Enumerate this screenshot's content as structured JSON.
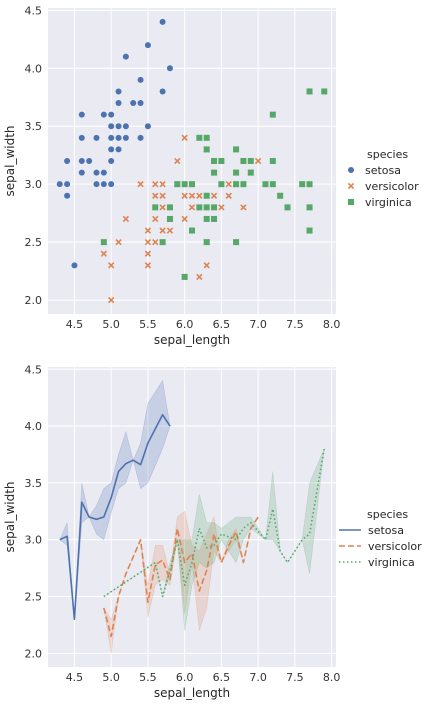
{
  "figure": {
    "panels": [
      {
        "id": "scatter",
        "xlabel": "sepal_length",
        "ylabel": "sepal_width",
        "xticks": [
          "4.5",
          "5.0",
          "5.5",
          "6.0",
          "6.5",
          "7.0",
          "7.5",
          "8.0"
        ],
        "yticks": [
          "2.0",
          "2.5",
          "3.0",
          "3.5",
          "4.0",
          "4.5"
        ],
        "legend": {
          "title": "species",
          "items": [
            "setosa",
            "versicolor",
            "virginica"
          ]
        }
      },
      {
        "id": "line",
        "xlabel": "sepal_length",
        "ylabel": "sepal_width",
        "xticks": [
          "4.5",
          "5.0",
          "5.5",
          "6.0",
          "6.5",
          "7.0",
          "7.5",
          "8.0"
        ],
        "yticks": [
          "2.0",
          "2.5",
          "3.0",
          "3.5",
          "4.0",
          "4.5"
        ],
        "legend": {
          "title": "species",
          "items": [
            "setosa",
            "versicolor",
            "virginica"
          ]
        }
      }
    ]
  },
  "chart_data": [
    {
      "type": "scatter",
      "xlabel": "sepal_length",
      "ylabel": "sepal_width",
      "xlim": [
        4.14,
        8.06
      ],
      "ylim": [
        1.88,
        4.52
      ],
      "grid": true,
      "legend_position": "right",
      "series": [
        {
          "name": "setosa",
          "marker": "circle",
          "color": "#4c72b0",
          "points": [
            [
              4.3,
              3.0
            ],
            [
              4.4,
              2.9
            ],
            [
              4.4,
              3.0
            ],
            [
              4.4,
              3.2
            ],
            [
              4.5,
              2.3
            ],
            [
              4.6,
              3.1
            ],
            [
              4.6,
              3.2
            ],
            [
              4.6,
              3.4
            ],
            [
              4.6,
              3.6
            ],
            [
              4.7,
              3.2
            ],
            [
              4.8,
              3.0
            ],
            [
              4.8,
              3.1
            ],
            [
              4.8,
              3.4
            ],
            [
              4.9,
              3.0
            ],
            [
              4.9,
              3.1
            ],
            [
              4.9,
              3.6
            ],
            [
              5.0,
              3.0
            ],
            [
              5.0,
              3.2
            ],
            [
              5.0,
              3.3
            ],
            [
              5.0,
              3.4
            ],
            [
              5.0,
              3.5
            ],
            [
              5.0,
              3.6
            ],
            [
              5.1,
              3.3
            ],
            [
              5.1,
              3.4
            ],
            [
              5.1,
              3.5
            ],
            [
              5.1,
              3.7
            ],
            [
              5.1,
              3.8
            ],
            [
              5.2,
              3.4
            ],
            [
              5.2,
              3.5
            ],
            [
              5.2,
              4.1
            ],
            [
              5.3,
              3.7
            ],
            [
              5.4,
              3.4
            ],
            [
              5.4,
              3.7
            ],
            [
              5.4,
              3.9
            ],
            [
              5.5,
              3.5
            ],
            [
              5.5,
              4.2
            ],
            [
              5.7,
              3.8
            ],
            [
              5.7,
              4.4
            ],
            [
              5.8,
              4.0
            ]
          ]
        },
        {
          "name": "versicolor",
          "marker": "x",
          "color": "#dd8452",
          "points": [
            [
              4.9,
              2.4
            ],
            [
              5.0,
              2.0
            ],
            [
              5.0,
              2.3
            ],
            [
              5.1,
              2.5
            ],
            [
              5.2,
              2.7
            ],
            [
              5.4,
              3.0
            ],
            [
              5.5,
              2.3
            ],
            [
              5.5,
              2.4
            ],
            [
              5.5,
              2.5
            ],
            [
              5.5,
              2.6
            ],
            [
              5.6,
              2.5
            ],
            [
              5.6,
              2.7
            ],
            [
              5.6,
              2.9
            ],
            [
              5.6,
              3.0
            ],
            [
              5.7,
              2.6
            ],
            [
              5.7,
              2.8
            ],
            [
              5.7,
              2.9
            ],
            [
              5.7,
              3.0
            ],
            [
              5.8,
              2.6
            ],
            [
              5.8,
              2.7
            ],
            [
              5.9,
              3.0
            ],
            [
              5.9,
              3.2
            ],
            [
              6.0,
              2.2
            ],
            [
              6.0,
              2.7
            ],
            [
              6.0,
              2.9
            ],
            [
              6.0,
              3.4
            ],
            [
              6.1,
              2.8
            ],
            [
              6.1,
              2.9
            ],
            [
              6.1,
              3.0
            ],
            [
              6.2,
              2.2
            ],
            [
              6.2,
              2.9
            ],
            [
              6.3,
              2.3
            ],
            [
              6.3,
              2.5
            ],
            [
              6.3,
              3.3
            ],
            [
              6.4,
              2.9
            ],
            [
              6.4,
              3.2
            ],
            [
              6.5,
              2.8
            ],
            [
              6.6,
              2.9
            ],
            [
              6.6,
              3.0
            ],
            [
              6.7,
              3.0
            ],
            [
              6.7,
              3.1
            ],
            [
              6.8,
              2.8
            ],
            [
              6.9,
              3.1
            ],
            [
              7.0,
              3.2
            ]
          ]
        },
        {
          "name": "virginica",
          "marker": "square",
          "color": "#55a868",
          "points": [
            [
              4.9,
              2.5
            ],
            [
              5.6,
              2.8
            ],
            [
              5.7,
              2.5
            ],
            [
              5.8,
              2.7
            ],
            [
              5.8,
              2.8
            ],
            [
              5.9,
              3.0
            ],
            [
              6.0,
              2.2
            ],
            [
              6.0,
              3.0
            ],
            [
              6.1,
              2.6
            ],
            [
              6.1,
              3.0
            ],
            [
              6.2,
              2.8
            ],
            [
              6.2,
              3.4
            ],
            [
              6.3,
              2.5
            ],
            [
              6.3,
              2.7
            ],
            [
              6.3,
              2.8
            ],
            [
              6.3,
              2.9
            ],
            [
              6.3,
              3.3
            ],
            [
              6.3,
              3.4
            ],
            [
              6.4,
              2.7
            ],
            [
              6.4,
              2.8
            ],
            [
              6.4,
              3.1
            ],
            [
              6.4,
              3.2
            ],
            [
              6.5,
              3.0
            ],
            [
              6.5,
              3.2
            ],
            [
              6.7,
              2.5
            ],
            [
              6.7,
              3.0
            ],
            [
              6.7,
              3.1
            ],
            [
              6.7,
              3.3
            ],
            [
              6.8,
              3.0
            ],
            [
              6.8,
              3.2
            ],
            [
              6.9,
              3.1
            ],
            [
              6.9,
              3.2
            ],
            [
              7.1,
              3.0
            ],
            [
              7.2,
              3.0
            ],
            [
              7.2,
              3.2
            ],
            [
              7.2,
              3.6
            ],
            [
              7.3,
              2.9
            ],
            [
              7.4,
              2.8
            ],
            [
              7.6,
              3.0
            ],
            [
              7.7,
              2.6
            ],
            [
              7.7,
              2.8
            ],
            [
              7.7,
              3.0
            ],
            [
              7.7,
              3.8
            ],
            [
              7.9,
              3.8
            ]
          ]
        }
      ]
    },
    {
      "type": "line",
      "xlabel": "sepal_length",
      "ylabel": "sepal_width",
      "xlim": [
        4.14,
        8.06
      ],
      "ylim": [
        1.88,
        4.52
      ],
      "grid": true,
      "legend_position": "right",
      "series": [
        {
          "name": "setosa",
          "color": "#4c72b0",
          "dash": "",
          "x": [
            4.3,
            4.4,
            4.5,
            4.6,
            4.7,
            4.8,
            4.9,
            5.0,
            5.1,
            5.2,
            5.3,
            5.4,
            5.5,
            5.7,
            5.8
          ],
          "y": [
            3.0,
            3.03,
            2.3,
            3.33,
            3.2,
            3.18,
            3.2,
            3.37,
            3.6,
            3.67,
            3.7,
            3.66,
            3.85,
            4.1,
            4.0
          ],
          "lower": [
            3.0,
            2.95,
            2.3,
            3.15,
            3.2,
            3.05,
            3.0,
            3.24,
            3.45,
            3.5,
            3.7,
            3.45,
            3.5,
            3.8,
            4.0
          ],
          "upper": [
            3.0,
            3.15,
            2.3,
            3.5,
            3.2,
            3.3,
            3.45,
            3.5,
            3.75,
            3.95,
            3.7,
            3.85,
            4.2,
            4.4,
            4.0
          ]
        },
        {
          "name": "versicolor",
          "color": "#dd8452",
          "dash": "6,3",
          "x": [
            4.9,
            5.0,
            5.1,
            5.2,
            5.4,
            5.5,
            5.6,
            5.7,
            5.8,
            5.9,
            6.0,
            6.1,
            6.2,
            6.3,
            6.4,
            6.5,
            6.6,
            6.7,
            6.8,
            6.9,
            7.0
          ],
          "y": [
            2.4,
            2.15,
            2.5,
            2.7,
            3.0,
            2.45,
            2.78,
            2.82,
            2.65,
            3.1,
            2.8,
            2.88,
            2.55,
            2.73,
            3.05,
            2.8,
            2.95,
            3.07,
            2.8,
            3.1,
            3.2
          ],
          "lower": [
            2.4,
            2.0,
            2.5,
            2.7,
            3.0,
            2.32,
            2.6,
            2.65,
            2.6,
            3.0,
            2.35,
            2.8,
            2.2,
            2.4,
            2.9,
            2.8,
            2.9,
            3.0,
            2.8,
            3.1,
            3.2
          ],
          "upper": [
            2.4,
            2.3,
            2.5,
            2.7,
            3.0,
            2.6,
            2.95,
            2.95,
            2.7,
            3.2,
            3.25,
            2.95,
            2.9,
            3.05,
            3.2,
            2.8,
            3.0,
            3.1,
            2.8,
            3.1,
            3.2
          ]
        },
        {
          "name": "virginica",
          "color": "#55a868",
          "dash": "1.5,2.5",
          "x": [
            4.9,
            5.6,
            5.7,
            5.8,
            5.9,
            6.0,
            6.1,
            6.2,
            6.3,
            6.4,
            6.5,
            6.7,
            6.8,
            6.9,
            7.1,
            7.2,
            7.3,
            7.4,
            7.6,
            7.7,
            7.9
          ],
          "y": [
            2.5,
            2.8,
            2.5,
            2.73,
            3.0,
            2.6,
            2.8,
            3.1,
            2.93,
            2.95,
            3.05,
            3.0,
            3.1,
            3.15,
            3.0,
            3.27,
            2.9,
            2.8,
            3.0,
            3.05,
            3.8
          ],
          "lower": [
            2.5,
            2.8,
            2.5,
            2.7,
            3.0,
            2.2,
            2.6,
            2.8,
            2.75,
            2.8,
            3.0,
            2.8,
            3.0,
            3.1,
            3.0,
            3.0,
            2.9,
            2.8,
            3.0,
            2.7,
            3.8
          ],
          "upper": [
            2.5,
            2.8,
            2.5,
            2.8,
            3.0,
            3.0,
            3.0,
            3.4,
            3.15,
            3.15,
            3.1,
            3.2,
            3.2,
            3.2,
            3.0,
            3.6,
            2.9,
            2.8,
            3.0,
            3.5,
            3.8
          ]
        }
      ]
    }
  ]
}
